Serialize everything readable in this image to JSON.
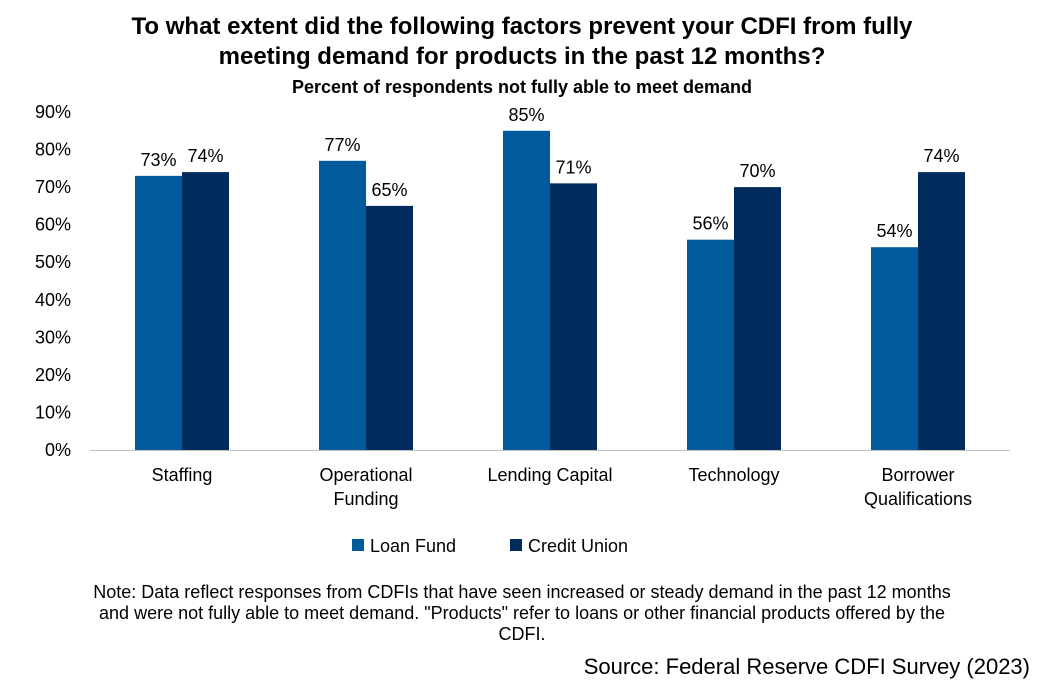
{
  "title_line1": "To what extent did the following factors prevent your CDFI from fully",
  "title_line2": "meeting demand for products in the past 12 months?",
  "subtitle": "Percent of respondents not fully able to meet demand",
  "note_line1": "Note: Data reflect responses from CDFIs that have seen increased or steady demand in the past 12 months",
  "note_line2": "and were not fully able to meet demand. \"Products\" refer to loans or other financial products offered by the",
  "note_line3": "CDFI.",
  "source": "Source: Federal Reserve CDFI Survey (2023)",
  "colors": {
    "loan_fund": "#005A9C",
    "credit_union": "#002B5C"
  },
  "chart_data": {
    "type": "bar",
    "title": "To what extent did the following factors prevent your CDFI from fully meeting demand for products in the past 12 months?",
    "subtitle": "Percent of respondents not fully able to meet demand",
    "categories": [
      [
        "Staffing"
      ],
      [
        "Operational",
        "Funding"
      ],
      [
        "Lending Capital"
      ],
      [
        "Technology"
      ],
      [
        "Borrower",
        "Qualifications"
      ]
    ],
    "series": [
      {
        "name": "Loan Fund",
        "values": [
          73,
          77,
          85,
          56,
          54
        ],
        "labels": [
          "73%",
          "77%",
          "85%",
          "56%",
          "54%"
        ]
      },
      {
        "name": "Credit Union",
        "values": [
          74,
          65,
          71,
          70,
          74
        ],
        "labels": [
          "74%",
          "65%",
          "71%",
          "70%",
          "74%"
        ]
      }
    ],
    "ylim": [
      0,
      90
    ],
    "yticks": [
      "0%",
      "10%",
      "20%",
      "30%",
      "40%",
      "50%",
      "60%",
      "70%",
      "80%",
      "90%"
    ],
    "legend": "bottom-center",
    "grid": false
  }
}
